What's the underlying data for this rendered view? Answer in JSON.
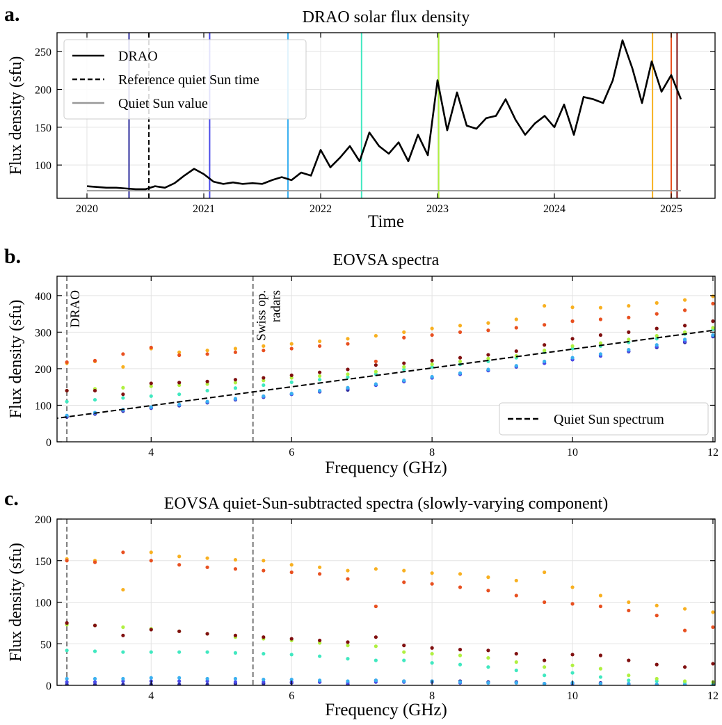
{
  "chart_data": [
    {
      "type": "line",
      "panel_label": "a.",
      "title": "DRAO solar flux density",
      "xlabel": "Time",
      "ylabel": "Flux density (sfu)",
      "xlim": [
        2019.744,
        2025.375
      ],
      "xticks": [
        2020,
        2021,
        2022,
        2023,
        2024,
        2025
      ],
      "ylim": [
        56,
        275
      ],
      "yticks": [
        100,
        150,
        200,
        250
      ],
      "grid": true,
      "legend": "upper left",
      "x": [
        2020.0,
        2020.083,
        2020.167,
        2020.25,
        2020.333,
        2020.417,
        2020.5,
        2020.583,
        2020.667,
        2020.75,
        2020.833,
        2020.917,
        2021.0,
        2021.083,
        2021.167,
        2021.25,
        2021.333,
        2021.417,
        2021.5,
        2021.583,
        2021.667,
        2021.75,
        2021.833,
        2021.917,
        2022.0,
        2022.083,
        2022.167,
        2022.25,
        2022.333,
        2022.417,
        2022.5,
        2022.583,
        2022.667,
        2022.75,
        2022.833,
        2022.917,
        2023.0,
        2023.083,
        2023.167,
        2023.25,
        2023.333,
        2023.417,
        2023.5,
        2023.583,
        2023.667,
        2023.75,
        2023.833,
        2023.917,
        2024.0,
        2024.083,
        2024.167,
        2024.25,
        2024.333,
        2024.417,
        2024.5,
        2024.583,
        2024.667,
        2024.75,
        2024.833,
        2024.917,
        2025.0,
        2025.083
      ],
      "series": [
        {
          "name": "DRAO",
          "color": "#000000",
          "values": [
            72,
            71,
            70,
            70,
            69,
            68,
            68,
            72,
            70,
            76,
            86,
            95,
            88,
            78,
            75,
            77,
            75,
            76,
            75,
            80,
            84,
            80,
            90,
            86,
            120,
            97,
            110,
            125,
            105,
            143,
            125,
            115,
            130,
            105,
            140,
            113,
            212,
            146,
            196,
            152,
            148,
            162,
            165,
            187,
            160,
            140,
            155,
            165,
            150,
            180,
            140,
            190,
            187,
            182,
            212,
            265,
            228,
            182,
            237,
            197,
            219,
            187
          ]
        }
      ],
      "reference_time": {
        "name": "Reference quiet Sun time",
        "x": 2020.53
      },
      "quiet_sun": {
        "name": "Quiet Sun value",
        "value": 66
      },
      "event_lines": [
        {
          "x": 2020.36,
          "color": "#2c2c9c"
        },
        {
          "x": 2021.05,
          "color": "#4a4ae8"
        },
        {
          "x": 2021.72,
          "color": "#3ab0f0"
        },
        {
          "x": 2022.35,
          "color": "#40e8c0"
        },
        {
          "x": 2023.01,
          "color": "#b0f040"
        },
        {
          "x": 2024.84,
          "color": "#f8b020"
        },
        {
          "x": 2025.0,
          "color": "#e85020"
        },
        {
          "x": 2025.05,
          "color": "#801010"
        }
      ]
    },
    {
      "type": "scatter",
      "panel_label": "b.",
      "title": "EOVSA spectra",
      "xlabel": "Frequency (GHz)",
      "ylabel": "Flux density (sfu)",
      "xlim": [
        2.66,
        12.03
      ],
      "xticks": [
        4,
        6,
        8,
        10,
        12
      ],
      "ylim": [
        0,
        453
      ],
      "yticks": [
        0,
        100,
        200,
        300,
        400
      ],
      "grid": true,
      "legend": "lower right",
      "markers": [
        {
          "x": 2.8,
          "label_lines": [
            "DRAO"
          ]
        },
        {
          "x": 5.45,
          "label_lines": [
            "Swiss op.",
            "radars"
          ]
        }
      ],
      "x": [
        2.8,
        3.2,
        3.6,
        4.0,
        4.4,
        4.8,
        5.2,
        5.6,
        6.0,
        6.4,
        6.8,
        7.2,
        7.6,
        8.0,
        8.4,
        8.8,
        9.2,
        9.6,
        10.0,
        10.4,
        10.8,
        11.2,
        11.6,
        12.0
      ],
      "series": [
        {
          "color": "#2c2c9c",
          "values": [
            68,
            76,
            84,
            92,
            99,
            107,
            115,
            122,
            130,
            137,
            142,
            155,
            165,
            175,
            185,
            195,
            205,
            215,
            225,
            235,
            247,
            258,
            272,
            288
          ]
        },
        {
          "color": "#4a4ae8",
          "values": [
            70,
            78,
            86,
            93,
            100,
            108,
            116,
            123,
            130,
            138,
            146,
            155,
            165,
            175,
            185,
            195,
            205,
            215,
            225,
            235,
            248,
            260,
            275,
            290
          ]
        },
        {
          "color": "#3ab0f0",
          "values": [
            72,
            80,
            88,
            95,
            102,
            110,
            118,
            125,
            132,
            140,
            148,
            158,
            168,
            178,
            188,
            198,
            208,
            220,
            230,
            240,
            252,
            265,
            280,
            292
          ]
        },
        {
          "color": "#40e8c0",
          "values": [
            110,
            115,
            120,
            125,
            130,
            140,
            147,
            155,
            163,
            170,
            177,
            185,
            198,
            205,
            212,
            220,
            230,
            245,
            255,
            262,
            272,
            282,
            295,
            308
          ]
        },
        {
          "color": "#b0f040",
          "values": [
            140,
            145,
            148,
            152,
            155,
            158,
            162,
            168,
            175,
            180,
            185,
            192,
            205,
            212,
            220,
            228,
            235,
            250,
            262,
            270,
            280,
            290,
            300,
            312
          ]
        },
        {
          "color": "#f8b020",
          "values": [
            215,
            220,
            205,
            255,
            245,
            250,
            255,
            262,
            268,
            275,
            282,
            290,
            300,
            310,
            318,
            325,
            335,
            372,
            368,
            367,
            372,
            380,
            388,
            398
          ]
        },
        {
          "color": "#e85020",
          "values": [
            218,
            222,
            240,
            258,
            237,
            240,
            245,
            250,
            255,
            262,
            268,
            220,
            285,
            292,
            300,
            305,
            312,
            320,
            330,
            335,
            340,
            350,
            360,
            378
          ]
        },
        {
          "color": "#801010",
          "values": [
            140,
            140,
            130,
            160,
            162,
            165,
            170,
            175,
            182,
            190,
            198,
            210,
            215,
            222,
            230,
            238,
            248,
            265,
            282,
            292,
            300,
            310,
            318,
            330
          ]
        }
      ],
      "quiet_sun_spectrum": {
        "name": "Quiet Sun spectrum",
        "color": "#000000",
        "x": [
          2.6,
          12.0
        ],
        "values": [
          63,
          305
        ]
      }
    },
    {
      "type": "scatter",
      "panel_label": "c.",
      "title": "EOVSA quiet-Sun-subtracted spectra (slowly-varying component)",
      "xlabel": "Frequency (GHz)",
      "ylabel": "Flux density (sfu)",
      "xlim": [
        2.66,
        12.03
      ],
      "xticks": [
        4,
        6,
        8,
        10,
        12
      ],
      "ylim": [
        0,
        200
      ],
      "yticks": [
        0,
        50,
        100,
        150,
        200
      ],
      "grid": true,
      "markers": [
        {
          "x": 2.8
        },
        {
          "x": 5.45
        }
      ],
      "x": [
        2.8,
        3.2,
        3.6,
        4.0,
        4.4,
        4.8,
        5.2,
        5.6,
        6.0,
        6.4,
        6.8,
        7.2,
        7.6,
        8.0,
        8.4,
        8.8,
        9.2,
        9.6,
        10.0,
        10.4,
        10.8,
        11.2,
        11.6,
        12.0
      ],
      "series": [
        {
          "color": "#2c2c9c",
          "values": [
            1,
            1,
            1,
            1,
            1,
            1,
            2,
            2,
            3,
            4,
            1,
            6,
            5,
            5,
            5,
            4,
            4,
            2,
            3,
            3,
            2,
            1,
            1,
            0
          ]
        },
        {
          "color": "#4a4ae8",
          "values": [
            4,
            4,
            5,
            5,
            5,
            5,
            4,
            4,
            4,
            4,
            3,
            4,
            4,
            4,
            3,
            3,
            3,
            2,
            2,
            2,
            1,
            1,
            1,
            0
          ]
        },
        {
          "color": "#3ab0f0",
          "values": [
            8,
            8,
            8,
            9,
            9,
            8,
            8,
            7,
            7,
            6,
            5,
            6,
            5,
            5,
            4,
            3,
            3,
            2,
            3,
            2,
            2,
            1,
            1,
            1
          ]
        },
        {
          "color": "#40e8c0",
          "values": [
            42,
            41,
            40,
            40,
            40,
            40,
            39,
            38,
            37,
            35,
            32,
            30,
            30,
            27,
            25,
            22,
            18,
            12,
            15,
            10,
            6,
            5,
            4,
            3
          ]
        },
        {
          "color": "#b0f040",
          "values": [
            73,
            72,
            70,
            68,
            65,
            62,
            58,
            56,
            54,
            51,
            48,
            47,
            40,
            38,
            36,
            33,
            28,
            22,
            24,
            20,
            12,
            8,
            5,
            4
          ]
        },
        {
          "color": "#f8b020",
          "values": [
            152,
            150,
            115,
            160,
            155,
            153,
            151,
            150,
            145,
            142,
            138,
            140,
            138,
            135,
            134,
            130,
            126,
            136,
            118,
            108,
            100,
            96,
            92,
            88
          ]
        },
        {
          "color": "#e85020",
          "values": [
            150,
            148,
            160,
            150,
            145,
            142,
            140,
            138,
            136,
            134,
            128,
            95,
            124,
            122,
            118,
            114,
            108,
            100,
            98,
            95,
            90,
            84,
            66,
            70
          ]
        },
        {
          "color": "#801010",
          "values": [
            75,
            72,
            60,
            67,
            65,
            62,
            60,
            58,
            56,
            54,
            52,
            58,
            48,
            45,
            43,
            42,
            38,
            30,
            37,
            36,
            30,
            25,
            22,
            26
          ]
        }
      ]
    }
  ]
}
